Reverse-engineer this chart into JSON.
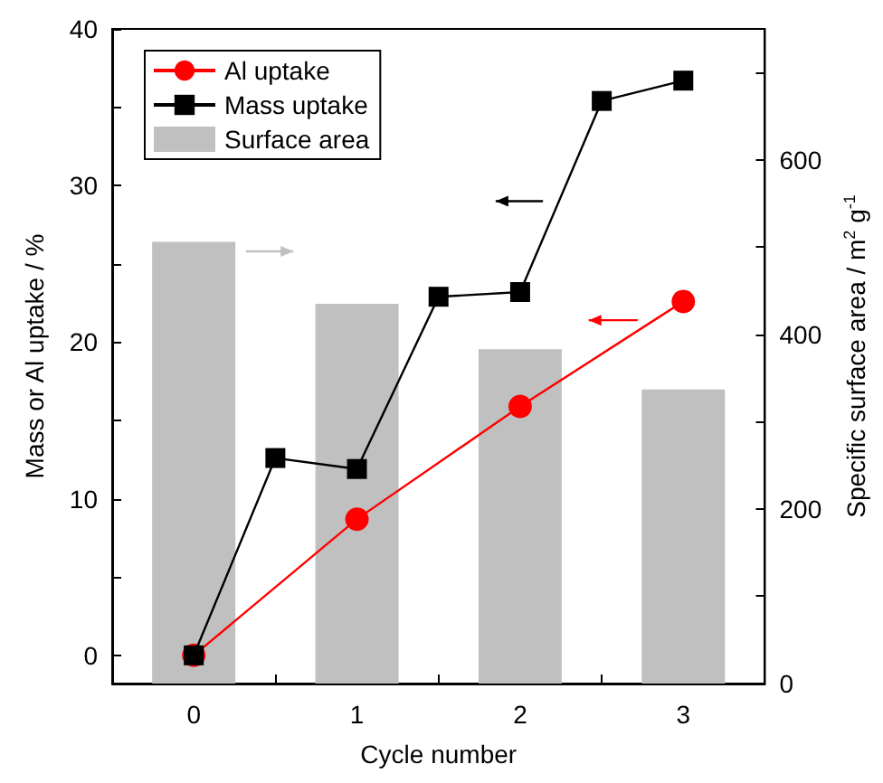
{
  "chart_data": {
    "type": "line",
    "xlabel": "Cycle number",
    "ylabel": "Mass or Al uptake / %",
    "y2label": "Specific surface area / m$^{2}$ g$^{-1}$",
    "xlim": [
      -0.5,
      3.5
    ],
    "xticks": [
      0,
      1,
      2,
      3
    ],
    "ylim": [
      -1.8,
      40
    ],
    "yticks": [
      0,
      10,
      20,
      30,
      40
    ],
    "y2lim": [
      0,
      750
    ],
    "y2ticks": [
      0,
      200,
      400,
      600
    ],
    "grid": false,
    "legend": "top left",
    "line_style": "solid",
    "series": [
      {
        "name": "Al uptake",
        "color": "#ff0000",
        "marker": "circle",
        "x": [
          0,
          1,
          2,
          3
        ],
        "values": [
          0,
          8.7,
          15.9,
          22.6
        ]
      },
      {
        "name": "Mass uptake",
        "color": "#000000",
        "marker": "square",
        "x": [
          0,
          0.5,
          1,
          1.5,
          2,
          2.5,
          3
        ],
        "values": [
          0,
          12.6,
          11.9,
          22.9,
          23.2,
          35.4,
          36.7
        ]
      },
      {
        "name": "Surface area",
        "type": "bar",
        "axis": "y2",
        "color": "#c0c0c0",
        "x": [
          0,
          1,
          2,
          3
        ],
        "values": [
          506,
          435,
          383,
          337
        ]
      }
    ]
  }
}
